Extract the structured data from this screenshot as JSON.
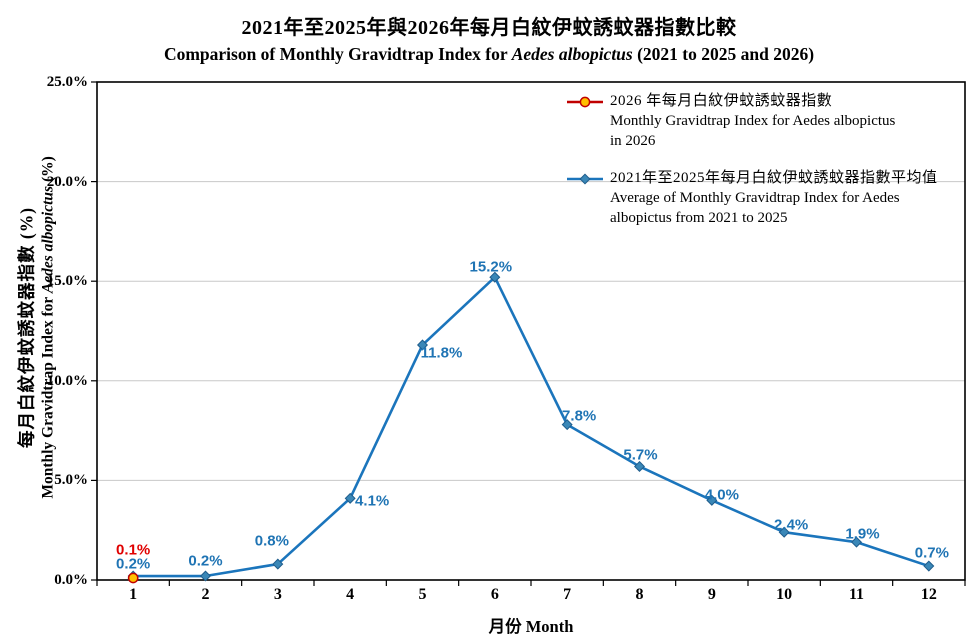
{
  "title": {
    "zh": "2021年至2025年與2026年每月白紋伊蚊誘蚊器指數比較",
    "en_prefix": "Comparison  of Monthly  Gravidtrap Index for ",
    "en_italic": "Aedes albopictus",
    "en_suffix": " (2021 to 2025 and 2026)"
  },
  "y_axis": {
    "zh_label": "每月白紋伊蚊誘蚊器指數 (%)",
    "en_prefix": "Monthly Gravidtrap  Index for ",
    "en_italic": "Aedes albopictus",
    "en_suffix": " (%)"
  },
  "x_axis": {
    "title": "月份 Month"
  },
  "legend": {
    "entries": [
      {
        "zh": "2026 年每月白紋伊蚊誘蚊器指數",
        "en": "Monthly Gravidtrap Index  for Aedes albopictus in 2026",
        "marker": "circle",
        "line_color": "#C00000",
        "marker_fill": "#FFC000",
        "marker_stroke": "#C00000"
      },
      {
        "zh": "2021年至2025年每月白紋伊蚊誘蚊器指數平均值",
        "en": "Average of Monthly Gravidtrap Index for Aedes albopictus  from 2021 to 2025",
        "marker": "diamond",
        "line_color": "#1B75BC",
        "marker_fill": "#3A87B7",
        "marker_stroke": "#1F5C8B"
      }
    ]
  },
  "chart_data": {
    "type": "line",
    "categories": [
      "1",
      "2",
      "3",
      "4",
      "5",
      "6",
      "7",
      "8",
      "9",
      "10",
      "11",
      "12"
    ],
    "series": [
      {
        "name": "Monthly Gravidtrap Index for Aedes albopictus in 2026",
        "values": [
          0.1,
          null,
          null,
          null,
          null,
          null,
          null,
          null,
          null,
          null,
          null,
          null
        ],
        "labels": [
          "0.1%"
        ],
        "line_color": "#C00000",
        "marker": "circle",
        "marker_fill": "#FFC000",
        "marker_stroke": "#C00000",
        "label_color": "#E00000"
      },
      {
        "name": "Average of Monthly Gravidtrap Index for Aedes albopictus from 2021 to 2025",
        "values": [
          0.2,
          0.2,
          0.8,
          4.1,
          11.8,
          15.2,
          7.8,
          5.7,
          4.0,
          2.4,
          1.9,
          0.7
        ],
        "labels": [
          "0.2%",
          "0.2%",
          "0.8%",
          "4.1%",
          "11.8%",
          "15.2%",
          "7.8%",
          "5.7%",
          "4.0%",
          "2.4%",
          "1.9%",
          "0.7%"
        ],
        "line_color": "#1B75BC",
        "marker": "diamond",
        "marker_fill": "#3A87B7",
        "marker_stroke": "#1F5C8B",
        "label_color": "#1F74B4"
      }
    ],
    "title": "2021年至2025年與2026年每月白紋伊蚊誘蚊器指數比較 / Comparison of Monthly Gravidtrap Index for Aedes albopictus (2021 to 2025 and 2026)",
    "xlabel": "月份 Month",
    "ylabel": "每月白紋伊蚊誘蚊器指數 (%) / Monthly Gravidtrap Index for Aedes albopictus (%)",
    "ylim": [
      0,
      25
    ],
    "y_tick_labels": [
      "0.0%",
      "5.0%",
      "10.0%",
      "15.0%",
      "20.0%",
      "25.0%"
    ],
    "grid": "horizontal",
    "gridline_color": "#C8C8C8",
    "legend_position": "top-right-inside"
  }
}
